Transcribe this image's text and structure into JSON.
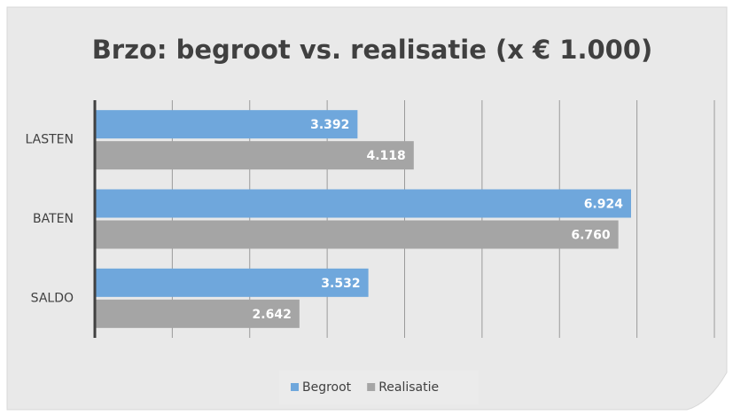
{
  "chart_data": {
    "type": "bar",
    "orientation": "horizontal",
    "title": "Brzo: begroot vs. realisatie (x € 1.000)",
    "categories": [
      "LASTEN",
      "BATEN",
      "SALDO"
    ],
    "series": [
      {
        "name": "Begroot",
        "color": "#6fa7dc",
        "values": [
          3392,
          6924,
          3532
        ],
        "value_labels": [
          "3.392",
          "6.924",
          "3.532"
        ]
      },
      {
        "name": "Realisatie",
        "color": "#a5a5a5",
        "values": [
          4118,
          6760,
          2642
        ],
        "value_labels": [
          "4.118",
          "6.760",
          "2.642"
        ]
      }
    ],
    "xlim": [
      0,
      8000
    ],
    "xticks": [
      0,
      1000,
      2000,
      3000,
      4000,
      5000,
      6000,
      7000,
      8000
    ],
    "grid": true,
    "legend": "bottom"
  }
}
